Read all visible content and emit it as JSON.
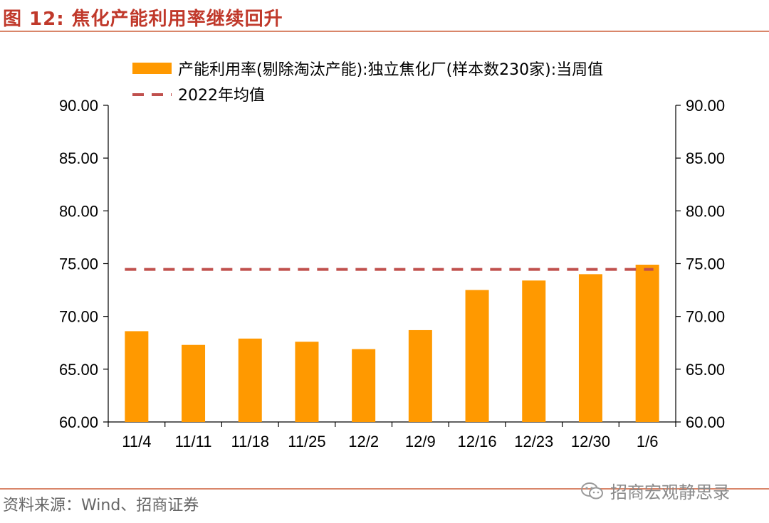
{
  "header": {
    "title": "图 12:  焦化产能利用率继续回升"
  },
  "footer": {
    "source": "资料来源：Wind、招商证券",
    "watermark": "招商宏观静思录"
  },
  "colors": {
    "accent": "#c0392b",
    "bar": "#ff9900",
    "avg_line": "#c0504d",
    "rule": "#d9866a"
  },
  "chart_data": {
    "type": "bar",
    "title": "",
    "categories": [
      "11/4",
      "11/11",
      "11/18",
      "11/25",
      "12/2",
      "12/9",
      "12/16",
      "12/23",
      "12/30",
      "1/6"
    ],
    "series": [
      {
        "name": "产能利用率(剔除淘汰产能):独立焦化厂(样本数230家):当周值",
        "values": [
          68.6,
          67.3,
          67.9,
          67.6,
          66.9,
          68.7,
          72.5,
          73.4,
          74.0,
          74.9
        ]
      }
    ],
    "reference_lines": [
      {
        "name": "2022年均值",
        "value": 74.45,
        "style": "dashed"
      }
    ],
    "ylim": [
      60,
      90
    ],
    "yticks": [
      "60.00",
      "65.00",
      "70.00",
      "75.00",
      "80.00",
      "85.00",
      "90.00"
    ],
    "secondary_yticks": [
      "60.00",
      "65.00",
      "70.00",
      "75.00",
      "80.00",
      "85.00",
      "90.00"
    ],
    "legend_position": "top",
    "grid": false
  }
}
